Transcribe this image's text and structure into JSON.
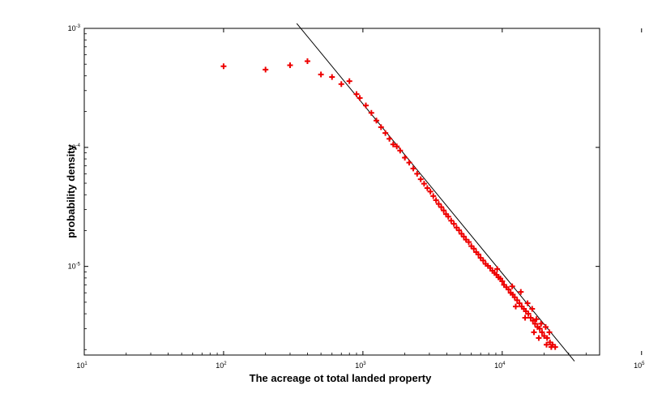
{
  "chart_data": {
    "type": "scatter",
    "title": "",
    "xlabel": "The acreage ot total landed property",
    "ylabel": "probability density",
    "x_scale": "log",
    "y_scale": "log",
    "xlim": [
      10,
      50000
    ],
    "ylim": [
      1.8e-06,
      0.001
    ],
    "x_ticks": [
      {
        "value": 10,
        "base": "10",
        "exp": "1"
      },
      {
        "value": 100,
        "base": "10",
        "exp": "2"
      },
      {
        "value": 1000,
        "base": "10",
        "exp": "3"
      },
      {
        "value": 10000,
        "base": "10",
        "exp": "4"
      },
      {
        "value": 100000,
        "base": "10",
        "exp": "5"
      }
    ],
    "y_ticks": [
      {
        "value": 0.001,
        "base": "10",
        "exp": "-3"
      },
      {
        "value": 0.0001,
        "base": "10",
        "exp": "-4"
      },
      {
        "value": 1e-05,
        "base": "10",
        "exp": "-5"
      }
    ],
    "grid": false,
    "marker_color": "#ee0000",
    "line_color": "#000000",
    "series": [
      {
        "marker": "plus",
        "points": [
          [
            100,
            0.00048
          ],
          [
            200,
            0.00045
          ],
          [
            300,
            0.00049
          ],
          [
            400,
            0.00053
          ],
          [
            500,
            0.00041
          ],
          [
            600,
            0.00039
          ],
          [
            700,
            0.00034
          ],
          [
            800,
            0.00036
          ],
          [
            900,
            0.00028
          ],
          [
            950,
            0.00026
          ],
          [
            1050,
            0.000225
          ],
          [
            1150,
            0.000195
          ],
          [
            1250,
            0.000168
          ],
          [
            1350,
            0.000148
          ],
          [
            1450,
            0.000132
          ],
          [
            1550,
            0.000118
          ],
          [
            1650,
            0.000106
          ],
          [
            1750,
            0.000102
          ],
          [
            1850,
            9.4e-05
          ],
          [
            2000,
            8.2e-05
          ],
          [
            2150,
            7.45e-05
          ],
          [
            2300,
            6.65e-05
          ],
          [
            2450,
            6e-05
          ],
          [
            2600,
            5.4e-05
          ],
          [
            2750,
            4.95e-05
          ],
          [
            2900,
            4.55e-05
          ],
          [
            3050,
            4.25e-05
          ],
          [
            3200,
            3.9e-05
          ],
          [
            3350,
            3.6e-05
          ],
          [
            3500,
            3.35e-05
          ],
          [
            3650,
            3.15e-05
          ],
          [
            3800,
            2.95e-05
          ],
          [
            3950,
            2.75e-05
          ],
          [
            4100,
            2.62e-05
          ],
          [
            4300,
            2.42e-05
          ],
          [
            4500,
            2.28e-05
          ],
          [
            4700,
            2.12e-05
          ],
          [
            4900,
            2.01e-05
          ],
          [
            5100,
            1.88e-05
          ],
          [
            5300,
            1.78e-05
          ],
          [
            5500,
            1.68e-05
          ],
          [
            5750,
            1.6e-05
          ],
          [
            6000,
            1.48e-05
          ],
          [
            6250,
            1.41e-05
          ],
          [
            6500,
            1.32e-05
          ],
          [
            6750,
            1.26e-05
          ],
          [
            7000,
            1.18e-05
          ],
          [
            7300,
            1.12e-05
          ],
          [
            7600,
            1.05e-05
          ],
          [
            7900,
            1.01e-05
          ],
          [
            8200,
            9.7e-06
          ],
          [
            8500,
            9.2e-06
          ],
          [
            8800,
            8.8e-06
          ],
          [
            9100,
            8.5e-06
          ],
          [
            9400,
            8.1e-06
          ],
          [
            9700,
            7.9e-06
          ],
          [
            10000,
            7.5e-06
          ],
          [
            10300,
            7e-06
          ],
          [
            10700,
            6.7e-06
          ],
          [
            11100,
            6.4e-06
          ],
          [
            11500,
            6e-06
          ],
          [
            11900,
            5.8e-06
          ],
          [
            12300,
            5.5e-06
          ],
          [
            12800,
            5.2e-06
          ],
          [
            13300,
            4.9e-06
          ],
          [
            13800,
            4.6e-06
          ],
          [
            14300,
            4.4e-06
          ],
          [
            14800,
            4.2e-06
          ],
          [
            15400,
            4e-06
          ],
          [
            16000,
            3.7e-06
          ],
          [
            16600,
            3.5e-06
          ],
          [
            17200,
            3.3e-06
          ],
          [
            17900,
            3.1e-06
          ],
          [
            18600,
            3e-06
          ],
          [
            19300,
            2.8e-06
          ],
          [
            20000,
            2.6e-06
          ],
          [
            21000,
            2.5e-06
          ],
          [
            22000,
            2.3e-06
          ],
          [
            23000,
            2.2e-06
          ],
          [
            24000,
            2.1e-06
          ],
          [
            9200,
            9.5e-06
          ],
          [
            11800,
            6.8e-06
          ],
          [
            13600,
            6.1e-06
          ],
          [
            15200,
            4.9e-06
          ],
          [
            16400,
            4.4e-06
          ],
          [
            17600,
            3.6e-06
          ],
          [
            19000,
            3.3e-06
          ],
          [
            20500,
            3.1e-06
          ],
          [
            21800,
            2.8e-06
          ],
          [
            12500,
            4.6e-06
          ],
          [
            14600,
            3.7e-06
          ],
          [
            16900,
            2.8e-06
          ],
          [
            18300,
            2.5e-06
          ],
          [
            20800,
            2.2e-06
          ],
          [
            22500,
            2.1e-06
          ]
        ]
      },
      {
        "type": "line",
        "points": [
          [
            335,
            0.0011
          ],
          [
            33000,
            1.6e-06
          ]
        ]
      }
    ]
  }
}
